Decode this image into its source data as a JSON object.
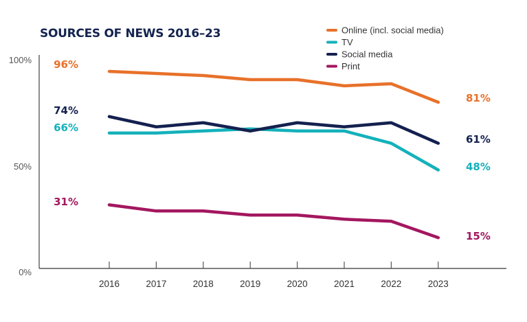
{
  "chart_data": {
    "type": "line",
    "title": "SOURCES OF NEWS 2016–23",
    "xlabel": "",
    "ylabel": "",
    "x": [
      "2016",
      "2017",
      "2018",
      "2019",
      "2020",
      "2021",
      "2022",
      "2023"
    ],
    "ylim": [
      0,
      100
    ],
    "yticks": [
      {
        "value": 0,
        "label": "0%"
      },
      {
        "value": 50,
        "label": "50%"
      },
      {
        "value": 100,
        "label": "100%"
      }
    ],
    "grid": false,
    "legend_position": "top-right",
    "series": [
      {
        "name": "Online (incl. social media)",
        "color": "#e8712a",
        "values": [
          96,
          95,
          94,
          92,
          92,
          89,
          90,
          81
        ],
        "start_label": "96%",
        "end_label": "81%"
      },
      {
        "name": "TV",
        "color": "#14b1bb",
        "values": [
          66,
          66,
          67,
          68,
          67,
          67,
          61,
          48
        ],
        "start_label": "66%",
        "end_label": "48%"
      },
      {
        "name": "Social media",
        "color": "#14214f",
        "values": [
          74,
          69,
          71,
          67,
          71,
          69,
          71,
          61
        ],
        "start_label": "74%",
        "end_label": "61%"
      },
      {
        "name": "Print",
        "color": "#a3175f",
        "values": [
          31,
          28,
          28,
          26,
          26,
          24,
          23,
          15
        ],
        "start_label": "31%",
        "end_label": "15%"
      }
    ]
  }
}
